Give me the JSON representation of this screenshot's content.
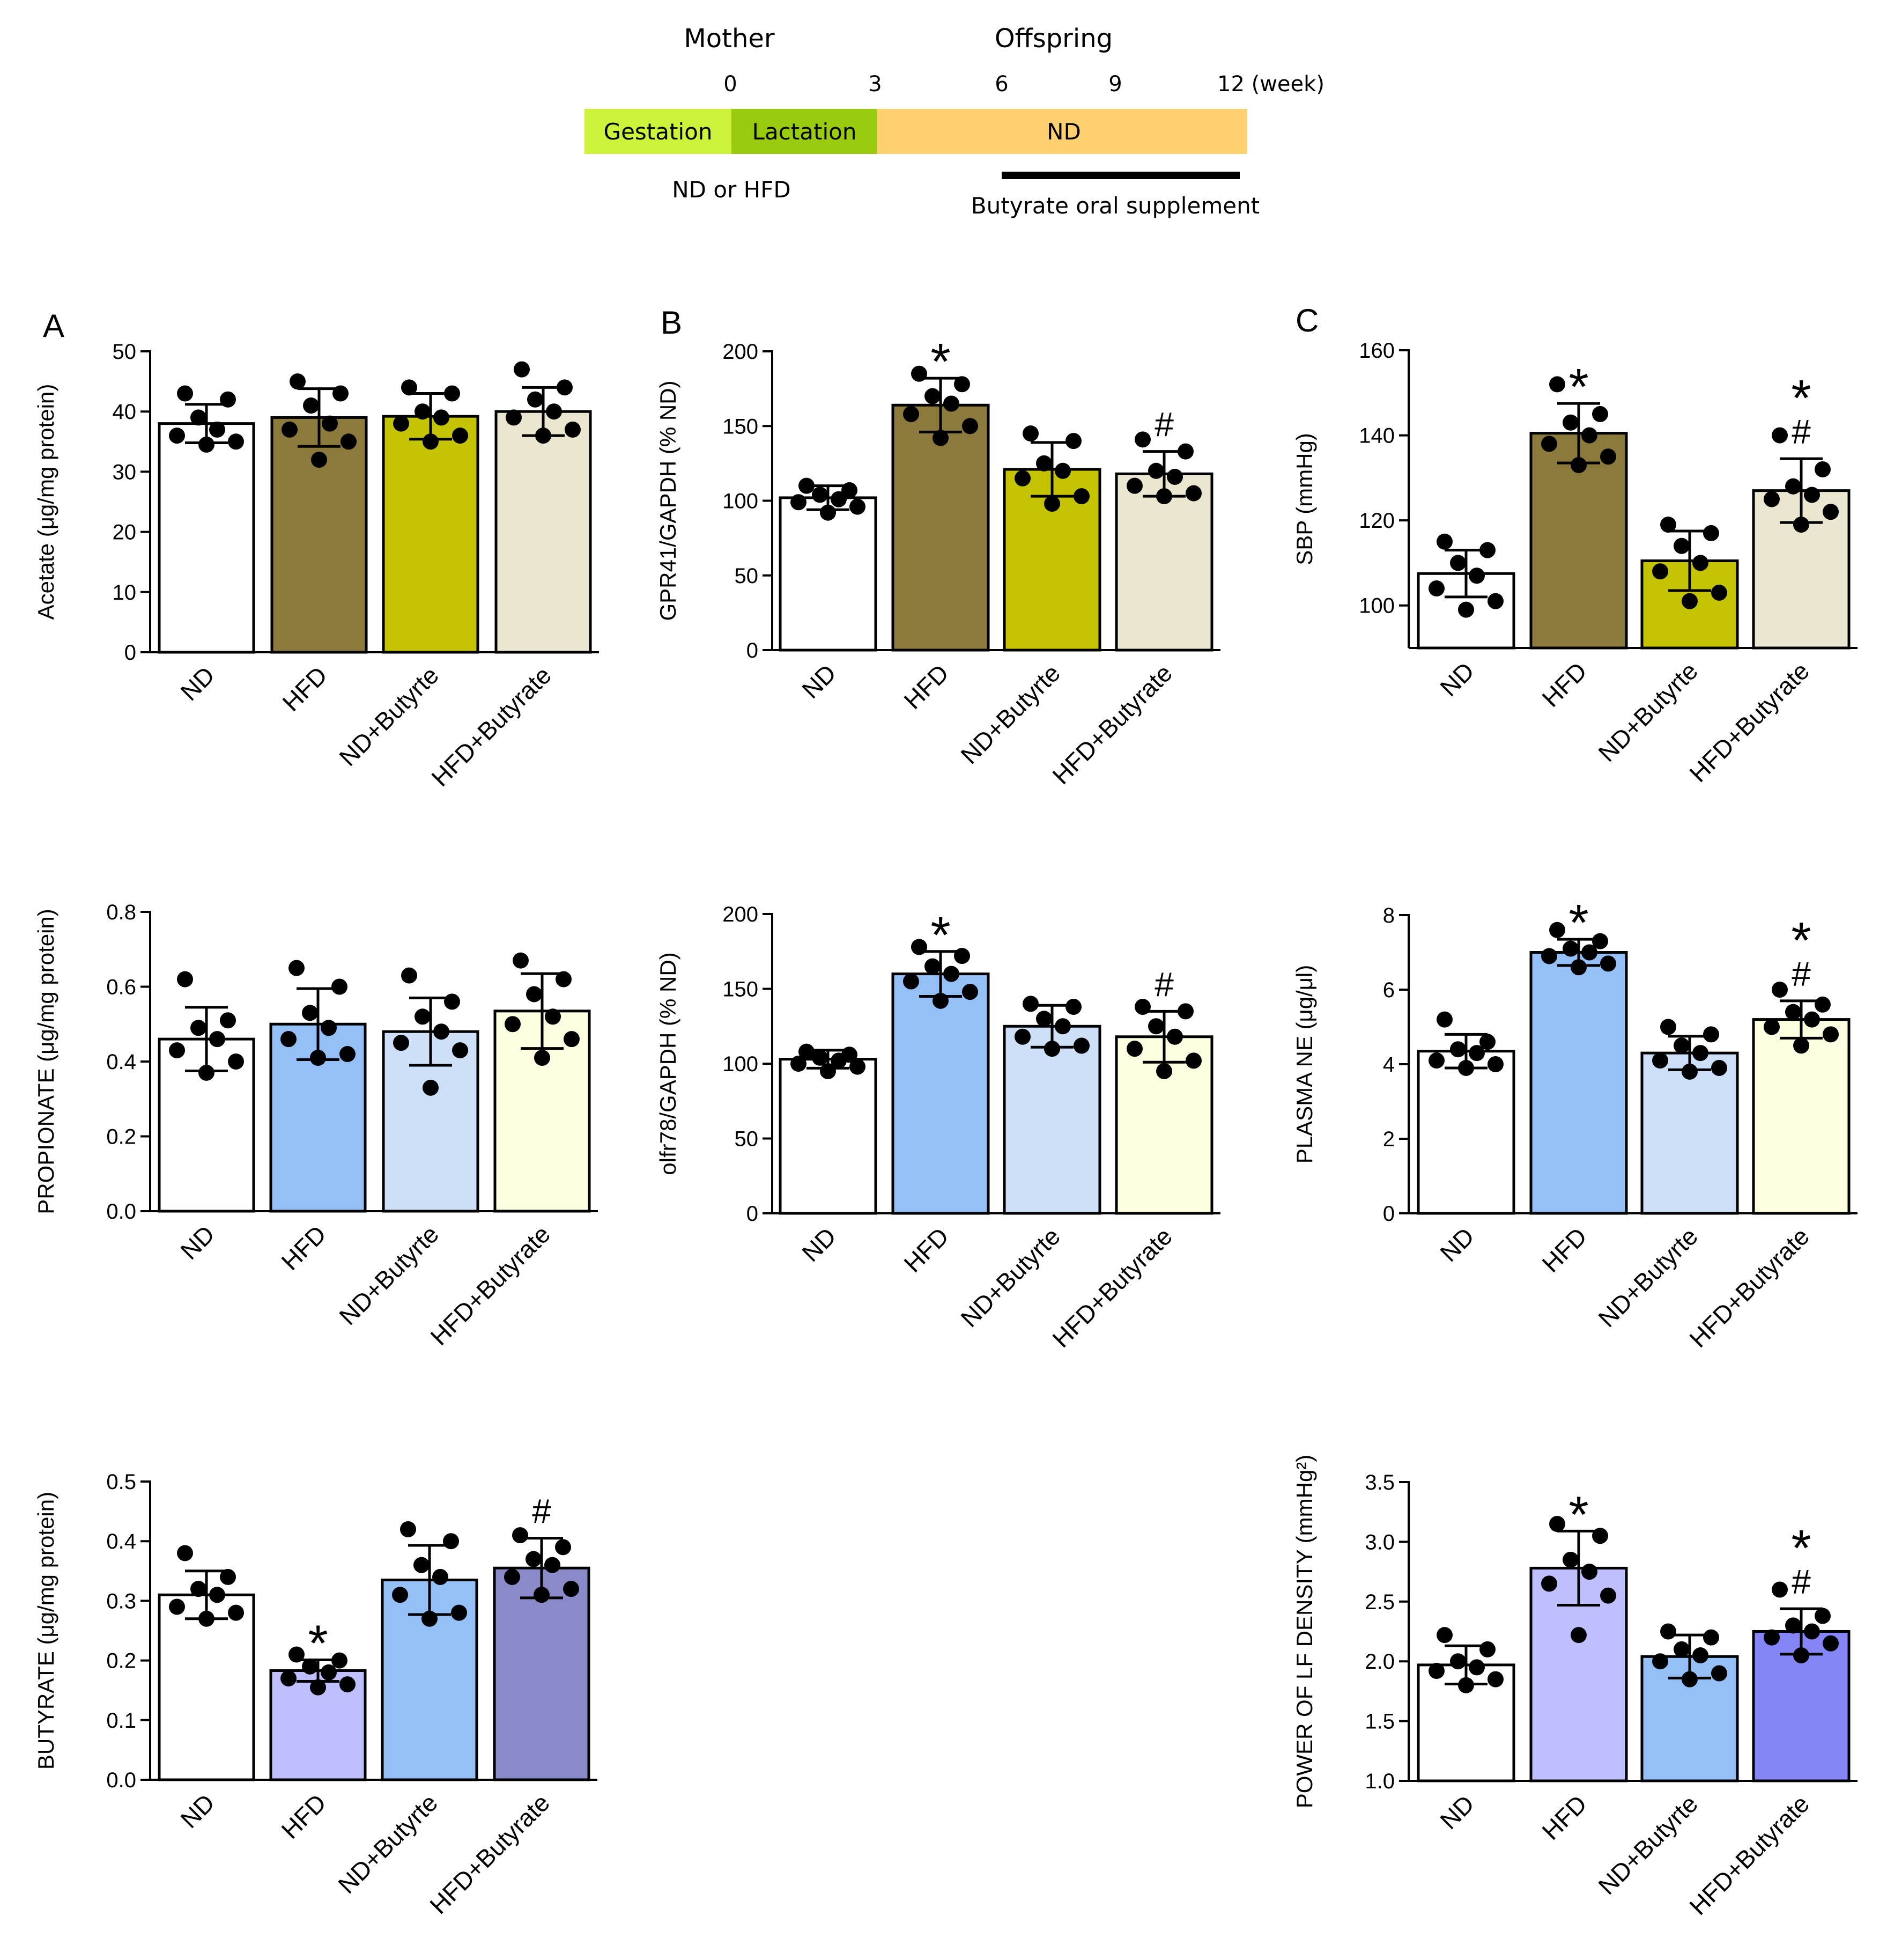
{
  "figure": {
    "timeline": {
      "mother_label": "Mother",
      "offspring_label": "Offspring",
      "ticks": [
        "0",
        "3",
        "6",
        "9",
        "12 (week)"
      ],
      "segments": [
        {
          "label": "Gestation",
          "color": "#ccf33a"
        },
        {
          "label": "Lactation",
          "color": "#99cc0f"
        },
        {
          "label": "ND",
          "color": "#fed06f"
        }
      ],
      "diet_note": "ND or HFD",
      "supplement_note": "Butyrate oral supplement"
    },
    "panel_letters": [
      "A",
      "B",
      "C"
    ],
    "colors": {
      "white": "#ffffff",
      "olive": "#8c7a3c",
      "yellow": "#c4c403",
      "beige": "#ebe6cf",
      "blue": "#94bff7",
      "lightblue": "#cde0f7",
      "cream": "#fdfde0",
      "lavender": "#bfbfff",
      "slate": "#8a8ac9",
      "violet": "#8585f7"
    }
  },
  "chart_data": [
    {
      "type": "bar",
      "panel": "A1",
      "ylabel": "Acetate (μg/mg protein)",
      "categories": [
        "ND",
        "HFD",
        "ND+Butyrte",
        "HFD+Butyrate"
      ],
      "values": [
        38,
        39,
        39.2,
        40
      ],
      "sd": [
        3.2,
        4.8,
        3.8,
        4
      ],
      "points": [
        [
          43,
          42,
          39,
          37,
          36,
          35,
          34.5
        ],
        [
          45,
          43,
          41,
          38,
          37,
          35,
          32
        ],
        [
          44,
          43,
          40,
          39,
          38,
          36,
          35
        ],
        [
          47,
          44,
          42,
          40,
          39,
          37,
          36
        ]
      ],
      "ylim": [
        0,
        50
      ],
      "yticks": [
        "0",
        "10",
        "20",
        "30",
        "40",
        "50"
      ],
      "annotations": [
        "",
        "",
        "",
        ""
      ]
    },
    {
      "type": "bar",
      "panel": "B1",
      "ylabel": "GPR41/GAPDH (% ND)",
      "categories": [
        "ND",
        "HFD",
        "ND+Butyrte",
        "HFD+Butyrate"
      ],
      "values": [
        102,
        164,
        121,
        118
      ],
      "sd": [
        8,
        18,
        18,
        15
      ],
      "points": [
        [
          110,
          107,
          104,
          101,
          99,
          96,
          92
        ],
        [
          185,
          178,
          170,
          165,
          158,
          150,
          142
        ],
        [
          145,
          140,
          125,
          120,
          115,
          103,
          98
        ],
        [
          141,
          133,
          120,
          116,
          110,
          105,
          103
        ]
      ],
      "ylim": [
        0,
        200
      ],
      "yticks": [
        "0",
        "50",
        "100",
        "150",
        "200"
      ],
      "annotations": [
        "",
        "*",
        "",
        "#"
      ]
    },
    {
      "type": "bar",
      "panel": "C1",
      "ylabel": "SBP (mmHg)",
      "categories": [
        "ND",
        "HFD",
        "ND+Butyrte",
        "HFD+Butyrate"
      ],
      "values": [
        107.5,
        140.5,
        110.5,
        127
      ],
      "sd": [
        5.5,
        7,
        7,
        7.5
      ],
      "points": [
        [
          115,
          113,
          110,
          107,
          104,
          101,
          99
        ],
        [
          152,
          145,
          143,
          140,
          138,
          135,
          133
        ],
        [
          119,
          117,
          114,
          110,
          108,
          103,
          101
        ],
        [
          140,
          132,
          128,
          126,
          125,
          122,
          119
        ]
      ],
      "ylim": [
        90,
        160
      ],
      "yticks": [
        "100",
        "120",
        "140",
        "160"
      ],
      "ytick_values": [
        100,
        120,
        140,
        160
      ],
      "annotations": [
        "",
        "*",
        "",
        "*\n#"
      ]
    },
    {
      "type": "bar",
      "panel": "A2",
      "ylabel": "PROPIONATE (μg/mg protein)",
      "categories": [
        "ND",
        "HFD",
        "ND+Butyrte",
        "HFD+Butyrate"
      ],
      "values": [
        0.46,
        0.5,
        0.48,
        0.535
      ],
      "sd": [
        0.085,
        0.095,
        0.09,
        0.1
      ],
      "points": [
        [
          0.62,
          0.51,
          0.49,
          0.46,
          0.43,
          0.4,
          0.37
        ],
        [
          0.65,
          0.6,
          0.53,
          0.49,
          0.46,
          0.42,
          0.41
        ],
        [
          0.63,
          0.56,
          0.52,
          0.48,
          0.45,
          0.43,
          0.33
        ],
        [
          0.67,
          0.62,
          0.58,
          0.52,
          0.5,
          0.46,
          0.41
        ]
      ],
      "ylim": [
        0,
        0.8
      ],
      "yticks": [
        "0.0",
        "0.2",
        "0.4",
        "0.6",
        "0.8"
      ],
      "annotations": [
        "",
        "",
        "",
        ""
      ]
    },
    {
      "type": "bar",
      "panel": "B2",
      "ylabel": "olfr78/GAPDH (% ND)",
      "categories": [
        "ND",
        "HFD",
        "ND+Butyrte",
        "HFD+Butyrate"
      ],
      "values": [
        103,
        160,
        125,
        118
      ],
      "sd": [
        6,
        15,
        14,
        17
      ],
      "points": [
        [
          108,
          106,
          104,
          102,
          100,
          98,
          95
        ],
        [
          178,
          172,
          165,
          160,
          155,
          148,
          142
        ],
        [
          140,
          138,
          130,
          125,
          118,
          112,
          110
        ],
        [
          138,
          135,
          125,
          118,
          110,
          102,
          95
        ]
      ],
      "ylim": [
        0,
        200
      ],
      "yticks": [
        "0",
        "50",
        "100",
        "150",
        "200"
      ],
      "annotations": [
        "",
        "*",
        "",
        "#"
      ]
    },
    {
      "type": "bar",
      "panel": "C2",
      "ylabel": "PLASMA NE (μg/μl)",
      "categories": [
        "ND",
        "HFD",
        "ND+Butyrte",
        "HFD+Butyrate"
      ],
      "values": [
        4.35,
        7.0,
        4.3,
        5.2
      ],
      "sd": [
        0.45,
        0.35,
        0.45,
        0.5
      ],
      "points": [
        [
          5.2,
          4.6,
          4.4,
          4.3,
          4.1,
          4.0,
          3.9
        ],
        [
          7.6,
          7.3,
          7.1,
          7.0,
          6.9,
          6.7,
          6.6
        ],
        [
          5.0,
          4.8,
          4.5,
          4.3,
          4.1,
          3.9,
          3.8
        ],
        [
          6.0,
          5.6,
          5.4,
          5.2,
          5.0,
          4.8,
          4.5
        ]
      ],
      "ylim": [
        0,
        8
      ],
      "yticks": [
        "0",
        "2",
        "4",
        "6",
        "8"
      ],
      "annotations": [
        "",
        "*",
        "",
        "*\n#"
      ]
    },
    {
      "type": "bar",
      "panel": "A3",
      "ylabel": "BUTYRATE (μg/mg protein)",
      "categories": [
        "ND",
        "HFD",
        "ND+Butyrte",
        "HFD+Butyrate"
      ],
      "values": [
        0.31,
        0.183,
        0.335,
        0.355
      ],
      "sd": [
        0.04,
        0.018,
        0.058,
        0.05
      ],
      "points": [
        [
          0.38,
          0.34,
          0.32,
          0.31,
          0.29,
          0.28,
          0.27
        ],
        [
          0.21,
          0.2,
          0.19,
          0.18,
          0.17,
          0.16,
          0.155
        ],
        [
          0.42,
          0.4,
          0.36,
          0.34,
          0.31,
          0.28,
          0.27
        ],
        [
          0.41,
          0.39,
          0.37,
          0.36,
          0.34,
          0.32,
          0.31
        ]
      ],
      "ylim": [
        0,
        0.5
      ],
      "yticks": [
        "0.0",
        "0.1",
        "0.2",
        "0.3",
        "0.4",
        "0.5"
      ],
      "annotations": [
        "",
        "*",
        "",
        "#"
      ]
    },
    {
      "type": "bar",
      "panel": "C3",
      "ylabel": "POWER OF LF DENSITY (mmHg²)",
      "categories": [
        "ND",
        "HFD",
        "ND+Butyrte",
        "HFD+Butyrate"
      ],
      "values": [
        1.97,
        2.78,
        2.04,
        2.25
      ],
      "sd": [
        0.16,
        0.31,
        0.18,
        0.19
      ],
      "points": [
        [
          2.22,
          2.1,
          2.0,
          1.95,
          1.92,
          1.85,
          1.8
        ],
        [
          3.15,
          3.05,
          2.85,
          2.75,
          2.65,
          2.55,
          2.22
        ],
        [
          2.25,
          2.2,
          2.1,
          2.05,
          2.0,
          1.9,
          1.85
        ],
        [
          2.6,
          2.38,
          2.3,
          2.25,
          2.2,
          2.15,
          2.05
        ]
      ],
      "ylim": [
        1.0,
        3.5
      ],
      "yticks": [
        "1.0",
        "1.5",
        "2.0",
        "2.5",
        "3.0",
        "3.5"
      ],
      "ytick_values": [
        1.0,
        1.5,
        2.0,
        2.5,
        3.0,
        3.5
      ],
      "annotations": [
        "",
        "*",
        "",
        "*\n#"
      ]
    }
  ]
}
